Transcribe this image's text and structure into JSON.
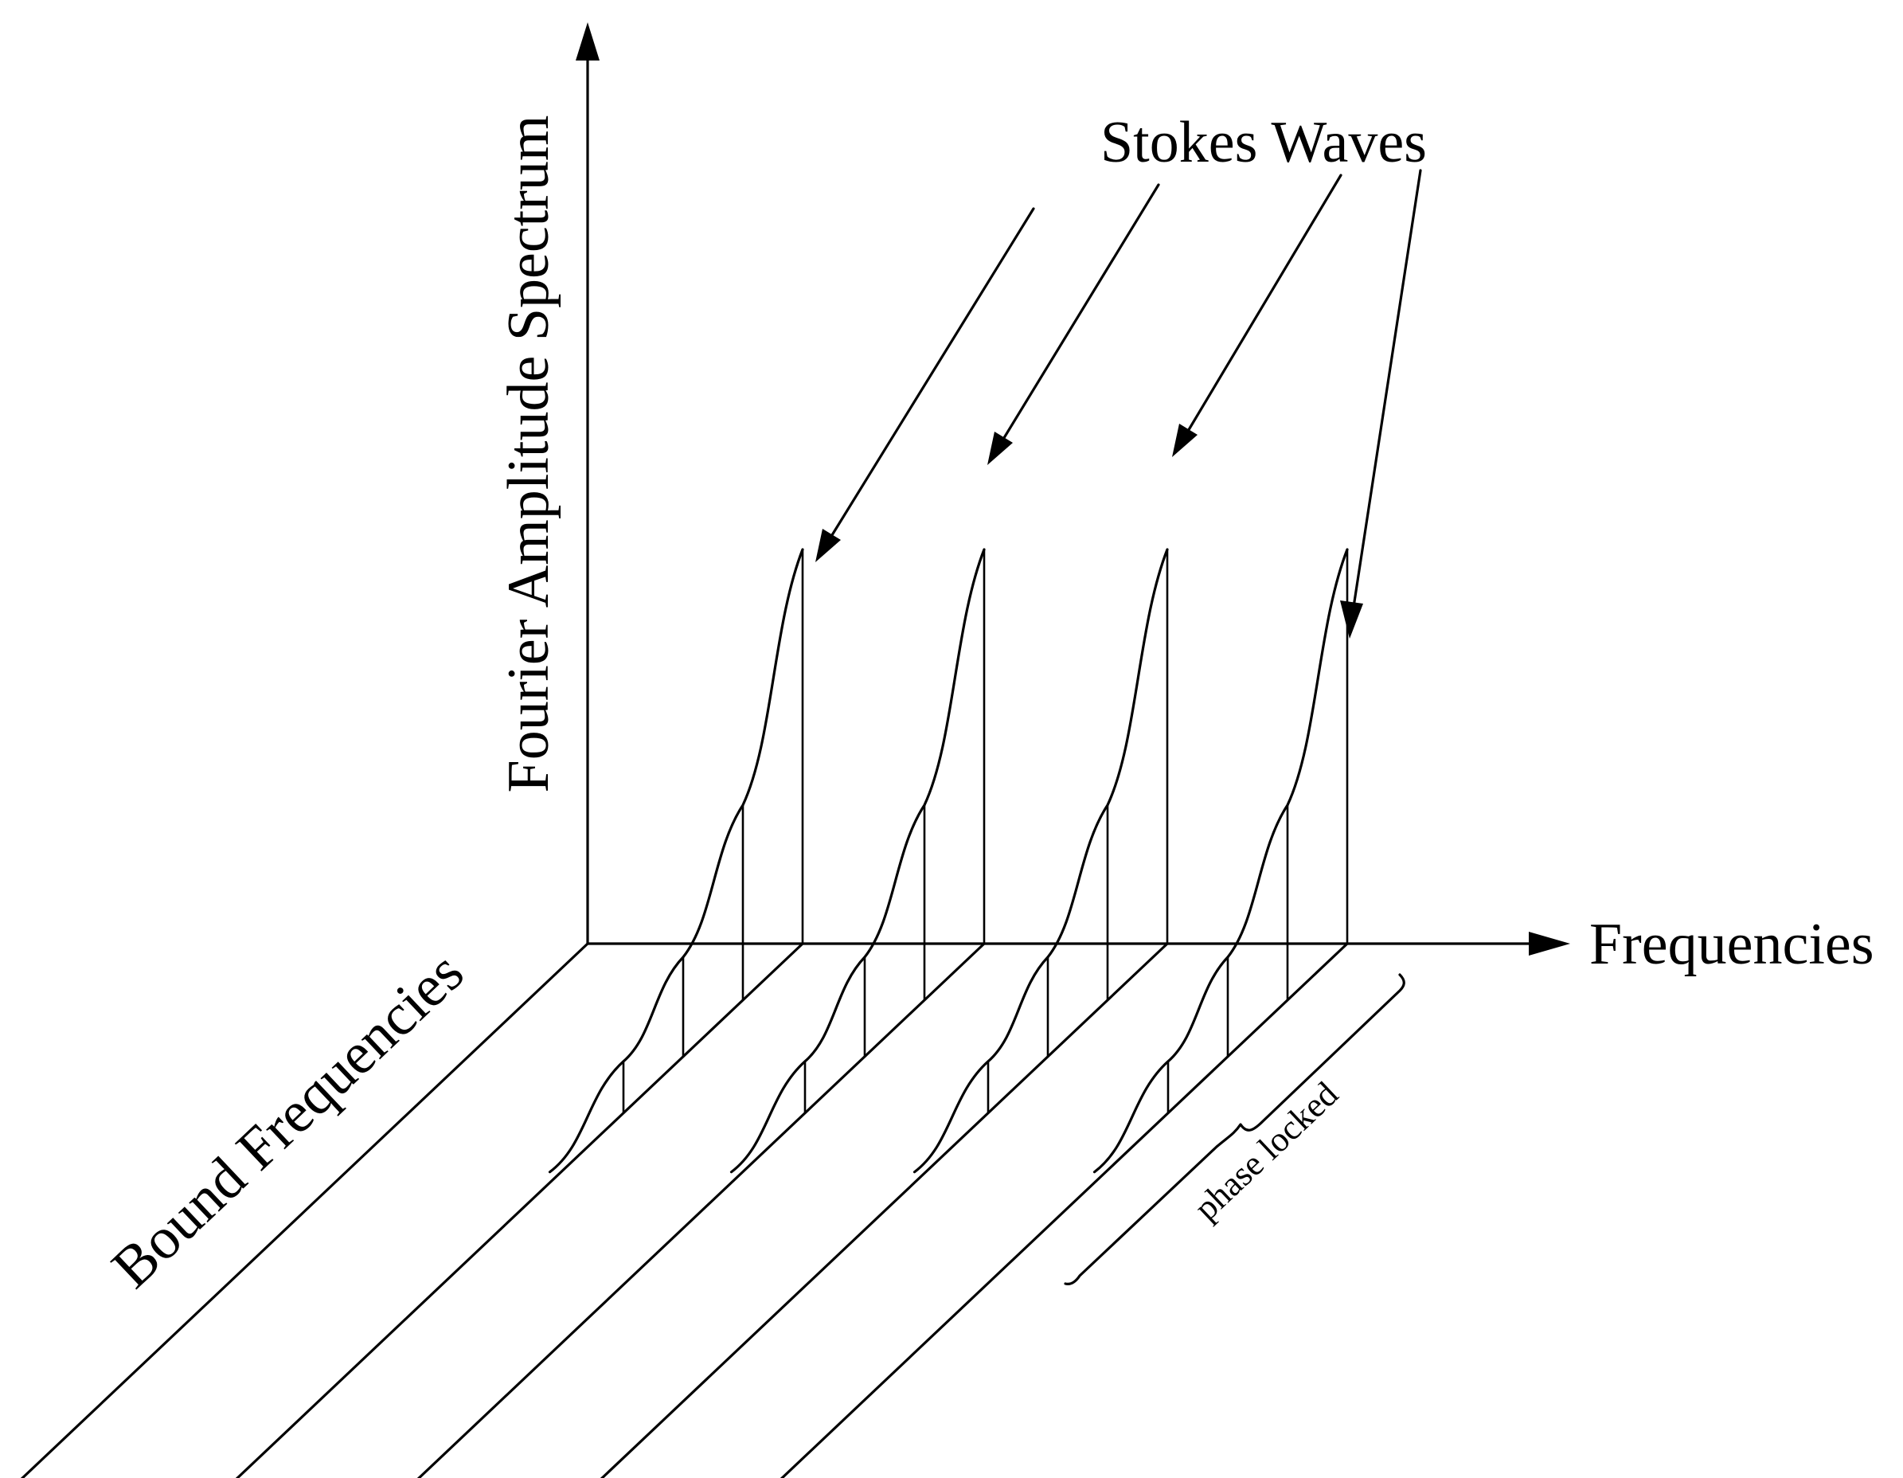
{
  "labels": {
    "y_axis": "Fourier Amplitude Spectrum",
    "x_axis": "Frequencies",
    "z_axis": "Bound Frequencies",
    "stokes": "Stokes Waves",
    "phase": "phase locked"
  },
  "waves": [
    {
      "heights": [
        0.13,
        0.25,
        0.49,
        0.99
      ]
    },
    {
      "heights": [
        0.13,
        0.25,
        0.49,
        0.99
      ]
    },
    {
      "heights": [
        0.13,
        0.25,
        0.49,
        0.99
      ]
    },
    {
      "heights": [
        0.13,
        0.25,
        0.49,
        0.99
      ]
    }
  ]
}
